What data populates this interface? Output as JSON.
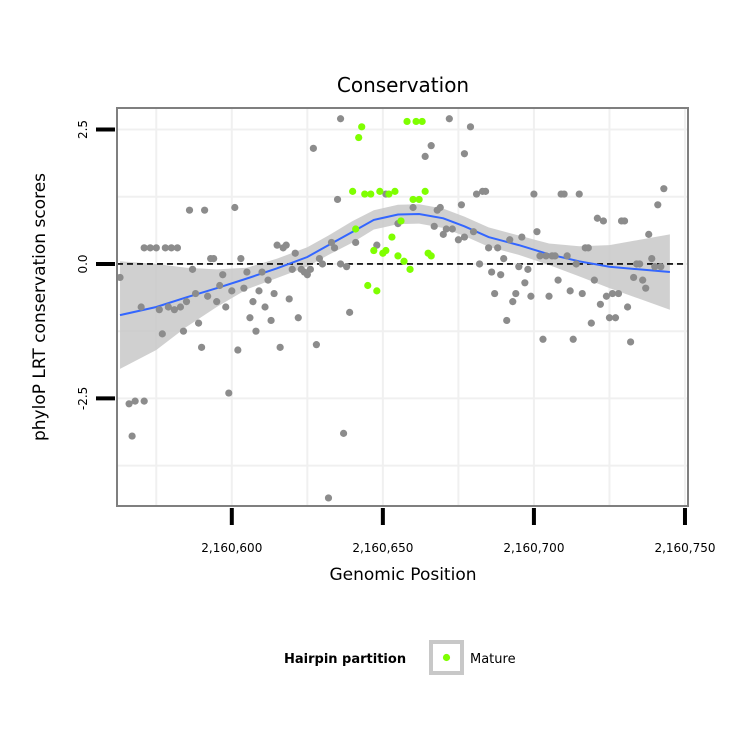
{
  "chart_data": {
    "type": "scatter",
    "title": "Conservation",
    "xlabel": "Genomic Position",
    "ylabel": "phyloP LRT conservation scores",
    "xlim": [
      2160562,
      2160751
    ],
    "ylim": [
      -4.5,
      2.9
    ],
    "x_ticks": [
      2160600,
      2160650,
      2160700,
      2160750
    ],
    "x_tick_labels": [
      "2,160,600",
      "2,160,650",
      "2,160,700",
      "2,160,750"
    ],
    "y_ticks": [
      -2.5,
      0.0,
      2.5
    ],
    "y_tick_labels": [
      "-2.5",
      "0.0",
      "2.5"
    ],
    "reference_line": {
      "y": 0,
      "style": "dashed"
    },
    "grid": true,
    "colors": {
      "background_points": "#8c8c8c",
      "mature": "#7fff00",
      "smooth_line": "#3366ff",
      "confidence_band": "#c8c8c8"
    },
    "legend": {
      "position": "bottom",
      "title": "Hairpin partition",
      "entries": [
        {
          "label": "Mature",
          "color": "#7fff00"
        }
      ]
    },
    "series": [
      {
        "color": "#8c8c8c",
        "points": [
          [
            2160563,
            -0.25
          ],
          [
            2160566,
            -2.6
          ],
          [
            2160567,
            -3.2
          ],
          [
            2160568,
            -2.55
          ],
          [
            2160570,
            -0.8
          ],
          [
            2160571,
            0.3
          ],
          [
            2160571,
            -2.55
          ],
          [
            2160573,
            0.3
          ],
          [
            2160575,
            0.3
          ],
          [
            2160576,
            -0.85
          ],
          [
            2160577,
            -1.3
          ],
          [
            2160578,
            0.3
          ],
          [
            2160579,
            -0.8
          ],
          [
            2160580,
            0.3
          ],
          [
            2160581,
            -0.85
          ],
          [
            2160582,
            0.3
          ],
          [
            2160583,
            -0.8
          ],
          [
            2160584,
            -1.25
          ],
          [
            2160585,
            -0.7
          ],
          [
            2160586,
            1.0
          ],
          [
            2160587,
            -0.1
          ],
          [
            2160588,
            -0.55
          ],
          [
            2160589,
            -1.1
          ],
          [
            2160590,
            -1.55
          ],
          [
            2160591,
            1.0
          ],
          [
            2160592,
            -0.6
          ],
          [
            2160593,
            0.1
          ],
          [
            2160594,
            0.1
          ],
          [
            2160595,
            -0.7
          ],
          [
            2160596,
            -0.4
          ],
          [
            2160597,
            -0.2
          ],
          [
            2160598,
            -0.8
          ],
          [
            2160599,
            -2.4
          ],
          [
            2160600,
            -0.5
          ],
          [
            2160601,
            1.05
          ],
          [
            2160602,
            -1.6
          ],
          [
            2160603,
            0.1
          ],
          [
            2160604,
            -0.45
          ],
          [
            2160605,
            -0.15
          ],
          [
            2160606,
            -1.0
          ],
          [
            2160607,
            -0.7
          ],
          [
            2160608,
            -1.25
          ],
          [
            2160609,
            -0.5
          ],
          [
            2160610,
            -0.15
          ],
          [
            2160611,
            -0.8
          ],
          [
            2160612,
            -0.3
          ],
          [
            2160613,
            -1.05
          ],
          [
            2160614,
            -0.55
          ],
          [
            2160615,
            0.35
          ],
          [
            2160616,
            -1.55
          ],
          [
            2160617,
            0.3
          ],
          [
            2160618,
            0.35
          ],
          [
            2160619,
            -0.65
          ],
          [
            2160620,
            -0.1
          ],
          [
            2160621,
            0.2
          ],
          [
            2160622,
            -1.0
          ],
          [
            2160623,
            -0.1
          ],
          [
            2160624,
            -0.15
          ],
          [
            2160625,
            -0.2
          ],
          [
            2160626,
            -0.1
          ],
          [
            2160627,
            2.15
          ],
          [
            2160628,
            -1.5
          ],
          [
            2160629,
            0.1
          ],
          [
            2160630,
            0.0
          ],
          [
            2160632,
            -4.35
          ],
          [
            2160633,
            0.4
          ],
          [
            2160634,
            0.3
          ],
          [
            2160635,
            1.2
          ],
          [
            2160636,
            0.0
          ],
          [
            2160636,
            2.7
          ],
          [
            2160637,
            -3.15
          ],
          [
            2160638,
            -0.05
          ],
          [
            2160639,
            -0.9
          ],
          [
            2160641,
            0.4
          ],
          [
            2160648,
            0.35
          ],
          [
            2160651,
            1.3
          ],
          [
            2160655,
            0.75
          ],
          [
            2160660,
            1.05
          ],
          [
            2160664,
            2.0
          ],
          [
            2160666,
            2.2
          ],
          [
            2160667,
            0.7
          ],
          [
            2160668,
            1.0
          ],
          [
            2160669,
            1.05
          ],
          [
            2160670,
            0.55
          ],
          [
            2160671,
            0.65
          ],
          [
            2160672,
            2.7
          ],
          [
            2160673,
            0.65
          ],
          [
            2160675,
            0.45
          ],
          [
            2160676,
            1.1
          ],
          [
            2160677,
            2.05
          ],
          [
            2160677,
            0.5
          ],
          [
            2160679,
            2.55
          ],
          [
            2160680,
            0.6
          ],
          [
            2160681,
            1.3
          ],
          [
            2160682,
            0.0
          ],
          [
            2160683,
            1.35
          ],
          [
            2160684,
            1.35
          ],
          [
            2160685,
            0.3
          ],
          [
            2160686,
            -0.15
          ],
          [
            2160687,
            -0.55
          ],
          [
            2160688,
            0.3
          ],
          [
            2160689,
            -0.2
          ],
          [
            2160690,
            0.1
          ],
          [
            2160691,
            -1.05
          ],
          [
            2160692,
            0.45
          ],
          [
            2160693,
            -0.7
          ],
          [
            2160694,
            -0.55
          ],
          [
            2160695,
            -0.05
          ],
          [
            2160696,
            0.5
          ],
          [
            2160697,
            -0.35
          ],
          [
            2160698,
            -0.1
          ],
          [
            2160699,
            -0.6
          ],
          [
            2160700,
            1.3
          ],
          [
            2160701,
            0.6
          ],
          [
            2160702,
            0.15
          ],
          [
            2160703,
            -1.4
          ],
          [
            2160704,
            0.15
          ],
          [
            2160705,
            -0.6
          ],
          [
            2160706,
            0.15
          ],
          [
            2160707,
            0.15
          ],
          [
            2160708,
            -0.3
          ],
          [
            2160709,
            1.3
          ],
          [
            2160710,
            1.3
          ],
          [
            2160711,
            0.15
          ],
          [
            2160712,
            -0.5
          ],
          [
            2160713,
            -1.4
          ],
          [
            2160714,
            0.0
          ],
          [
            2160715,
            1.3
          ],
          [
            2160716,
            -0.55
          ],
          [
            2160717,
            0.3
          ],
          [
            2160718,
            0.3
          ],
          [
            2160719,
            -1.1
          ],
          [
            2160720,
            -0.3
          ],
          [
            2160721,
            0.85
          ],
          [
            2160722,
            -0.75
          ],
          [
            2160723,
            0.8
          ],
          [
            2160724,
            -0.6
          ],
          [
            2160725,
            -1.0
          ],
          [
            2160726,
            -0.55
          ],
          [
            2160727,
            -1.0
          ],
          [
            2160728,
            -0.55
          ],
          [
            2160729,
            0.8
          ],
          [
            2160730,
            0.8
          ],
          [
            2160731,
            -0.8
          ],
          [
            2160732,
            -1.45
          ],
          [
            2160733,
            -0.25
          ],
          [
            2160734,
            0.0
          ],
          [
            2160735,
            0.0
          ],
          [
            2160736,
            -0.3
          ],
          [
            2160737,
            -0.45
          ],
          [
            2160738,
            0.55
          ],
          [
            2160739,
            0.1
          ],
          [
            2160740,
            -0.05
          ],
          [
            2160741,
            1.1
          ],
          [
            2160742,
            -0.05
          ],
          [
            2160743,
            1.4
          ]
        ]
      },
      {
        "name": "Mature",
        "color": "#7fff00",
        "points": [
          [
            2160640,
            1.35
          ],
          [
            2160641,
            0.65
          ],
          [
            2160642,
            2.35
          ],
          [
            2160643,
            2.55
          ],
          [
            2160644,
            1.3
          ],
          [
            2160645,
            -0.4
          ],
          [
            2160646,
            1.3
          ],
          [
            2160647,
            0.25
          ],
          [
            2160648,
            -0.5
          ],
          [
            2160649,
            1.35
          ],
          [
            2160650,
            0.2
          ],
          [
            2160651,
            0.25
          ],
          [
            2160652,
            1.3
          ],
          [
            2160653,
            0.5
          ],
          [
            2160654,
            1.35
          ],
          [
            2160655,
            0.15
          ],
          [
            2160656,
            0.8
          ],
          [
            2160657,
            0.05
          ],
          [
            2160658,
            2.65
          ],
          [
            2160659,
            -0.1
          ],
          [
            2160660,
            1.2
          ],
          [
            2160661,
            2.65
          ],
          [
            2160662,
            1.2
          ],
          [
            2160663,
            2.65
          ],
          [
            2160664,
            1.35
          ],
          [
            2160665,
            0.2
          ],
          [
            2160666,
            0.15
          ]
        ]
      }
    ],
    "smooth": {
      "x": [
        2160563,
        2160575,
        2160585,
        2160595,
        2160605,
        2160615,
        2160625,
        2160632,
        2160640,
        2160647,
        2160655,
        2160662,
        2160670,
        2160677,
        2160685,
        2160695,
        2160705,
        2160715,
        2160725,
        2160735,
        2160745
      ],
      "y": [
        -0.95,
        -0.8,
        -0.62,
        -0.45,
        -0.27,
        -0.08,
        0.13,
        0.35,
        0.6,
        0.82,
        0.92,
        0.93,
        0.85,
        0.7,
        0.5,
        0.35,
        0.18,
        0.05,
        -0.05,
        -0.1,
        -0.15
      ],
      "band": [
        1.0,
        0.8,
        0.55,
        0.35,
        0.2,
        0.18,
        0.18,
        0.18,
        0.2,
        0.18,
        0.18,
        0.18,
        0.18,
        0.18,
        0.18,
        0.18,
        0.2,
        0.28,
        0.4,
        0.55,
        0.7
      ]
    }
  }
}
